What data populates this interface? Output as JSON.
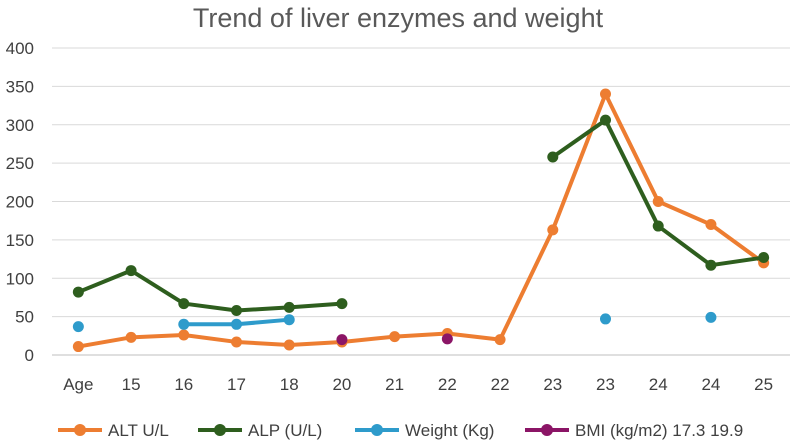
{
  "chart_data": {
    "type": "line",
    "title": "Trend of liver enzymes and weight",
    "xlabel": "",
    "ylabel": "",
    "ylim": [
      0,
      400
    ],
    "yticks": [
      0,
      50,
      100,
      150,
      200,
      250,
      300,
      350,
      400
    ],
    "grid": true,
    "legend_position": "bottom",
    "categories": [
      "Age",
      "15",
      "16",
      "17",
      "18",
      "20",
      "21",
      "22",
      "22",
      "23",
      "23",
      "24",
      "24",
      "25"
    ],
    "series": [
      {
        "name": "ALT U/L",
        "color": "#ED7D31",
        "values": [
          11,
          23,
          26,
          17,
          13,
          17,
          24,
          28,
          20,
          163,
          340,
          200,
          170,
          120
        ]
      },
      {
        "name": "ALP (U/L)",
        "color": "#2E5E1E",
        "values": [
          82,
          110,
          67,
          58,
          62,
          67,
          null,
          null,
          null,
          258,
          306,
          168,
          117,
          127
        ]
      },
      {
        "name": "Weight (Kg)",
        "color": "#2E9BCB",
        "values": [
          37,
          null,
          40,
          40,
          46,
          null,
          null,
          null,
          null,
          null,
          47,
          null,
          49,
          null
        ]
      },
      {
        "name": "BMI (kg/m2) 17.3 19.9",
        "color": "#8B1566",
        "values": [
          null,
          null,
          null,
          null,
          null,
          20,
          null,
          21,
          null,
          null,
          null,
          null,
          null,
          null
        ]
      }
    ]
  }
}
